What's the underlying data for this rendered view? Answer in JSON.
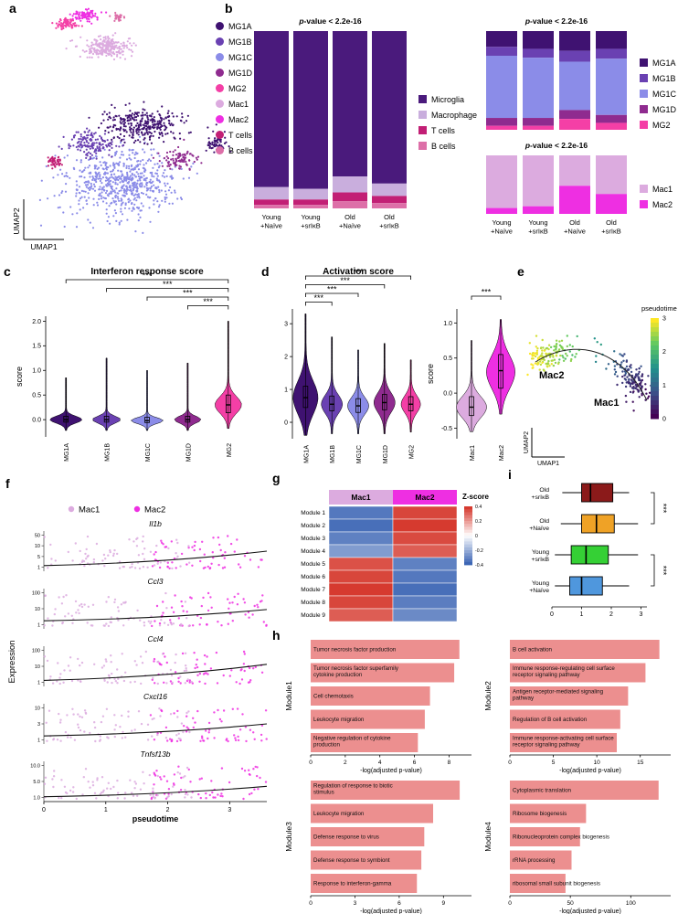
{
  "panel_labels": {
    "a": "a",
    "b": "b",
    "c": "c",
    "d": "d",
    "e": "e",
    "f": "f",
    "g": "g",
    "h": "h",
    "i": "i"
  },
  "colors": {
    "mg1a": "#3f1271",
    "mg1b": "#6a41b2",
    "mg1c": "#8b8ce8",
    "mg1d": "#8f2b8f",
    "mg2": "#f43fa6",
    "mac1": "#dcabdf",
    "mac2": "#ee2fe2",
    "tcells": "#c21f75",
    "bcells": "#dd6fa8",
    "microglia": "#4a1a7c",
    "macrophage": "#c9aedd",
    "go_bar": "#ec8f8f",
    "heat_red": "#d63a2f",
    "heat_blue": "#3d66b5",
    "box_old_srikb": "#8b1a1a",
    "box_old_naive": "#efa226",
    "box_young_srikb": "#35d035",
    "box_young_naive": "#4f97dd",
    "trend_line": "#111111"
  },
  "legends": {
    "a": [
      {
        "name": "MG1A",
        "color_key": "mg1a"
      },
      {
        "name": "MG1B",
        "color_key": "mg1b"
      },
      {
        "name": "MG1C",
        "color_key": "mg1c"
      },
      {
        "name": "MG1D",
        "color_key": "mg1d"
      },
      {
        "name": "MG2",
        "color_key": "mg2"
      },
      {
        "name": "Mac1",
        "color_key": "mac1"
      },
      {
        "name": "Mac2",
        "color_key": "mac2"
      },
      {
        "name": "T cells",
        "color_key": "tcells"
      },
      {
        "name": "B cells",
        "color_key": "bcells"
      }
    ],
    "b_celltypes": [
      {
        "name": "Microglia",
        "color_key": "microglia"
      },
      {
        "name": "Macrophage",
        "color_key": "macrophage"
      },
      {
        "name": "T cells",
        "color_key": "tcells"
      },
      {
        "name": "B cells",
        "color_key": "bcells"
      }
    ],
    "b_microglia": [
      {
        "name": "MG1A",
        "color_key": "mg1a"
      },
      {
        "name": "MG1B",
        "color_key": "mg1b"
      },
      {
        "name": "MG1C",
        "color_key": "mg1c"
      },
      {
        "name": "MG1D",
        "color_key": "mg1d"
      },
      {
        "name": "MG2",
        "color_key": "mg2"
      }
    ],
    "b_macrophage": [
      {
        "name": "Mac1",
        "color_key": "mac1"
      },
      {
        "name": "Mac2",
        "color_key": "mac2"
      }
    ]
  },
  "chart_data": {
    "umap_clusters": {
      "type": "scatter",
      "xlabel": "UMAP1",
      "ylabel": "UMAP2",
      "clusters": [
        {
          "name": "MG1C",
          "color_key": "mg1c",
          "blobs": [
            [
              125,
              196,
              68,
              38,
              650
            ]
          ]
        },
        {
          "name": "MG1A",
          "color_key": "mg1a",
          "blobs": [
            [
              150,
              133,
              50,
              20,
              320
            ],
            [
              229,
              153,
              13,
              9,
              60
            ]
          ]
        },
        {
          "name": "MG1B",
          "color_key": "mg1b",
          "blobs": [
            [
              92,
              153,
              28,
              14,
              150
            ]
          ]
        },
        {
          "name": "MG1D",
          "color_key": "mg1d",
          "blobs": [
            [
              188,
              169,
              20,
              13,
              90
            ]
          ]
        },
        {
          "name": "MG2",
          "color_key": "mg2",
          "blobs": [
            [
              66,
              22,
              13,
              7,
              70
            ]
          ]
        },
        {
          "name": "Mac1",
          "color_key": "mac1",
          "blobs": [
            [
              108,
              48,
              28,
              13,
              240
            ]
          ]
        },
        {
          "name": "Mac2",
          "color_key": "mac2",
          "blobs": [
            [
              86,
              13,
              16,
              6,
              90
            ]
          ]
        },
        {
          "name": "T cells",
          "color_key": "tcells",
          "blobs": [
            [
              52,
              173,
              9,
              7,
              50
            ]
          ]
        },
        {
          "name": "B cells",
          "color_key": "bcells",
          "blobs": [
            [
              121,
              16,
              8,
              5,
              28
            ]
          ]
        }
      ]
    },
    "composition_celltypes": {
      "type": "bar",
      "stacked": true,
      "unit": "percent",
      "title": "p-value < 2.2e-16",
      "categories": [
        "Young\n+Naïve",
        "Young\n+srIκB",
        "Old\n+Naïve",
        "Old\n+srIκB"
      ],
      "series": [
        {
          "name": "Microglia",
          "color_key": "microglia",
          "values": [
            88,
            89,
            82,
            86
          ]
        },
        {
          "name": "Macrophage",
          "color_key": "macrophage",
          "values": [
            7,
            6,
            9,
            7
          ]
        },
        {
          "name": "T cells",
          "color_key": "tcells",
          "values": [
            3,
            3,
            5,
            4
          ]
        },
        {
          "name": "B cells",
          "color_key": "bcells",
          "values": [
            2,
            2,
            4,
            3
          ]
        }
      ]
    },
    "composition_microglia": {
      "type": "bar",
      "stacked": true,
      "unit": "percent",
      "title": "p-value < 2.2e-16",
      "categories": [
        "Young\n+Naïve",
        "Young\n+srIκB",
        "Old\n+Naïve",
        "Old\n+srIκB"
      ],
      "series": [
        {
          "name": "MG1A",
          "color_key": "mg1a",
          "values": [
            16,
            18,
            20,
            18
          ]
        },
        {
          "name": "MG1B",
          "color_key": "mg1b",
          "values": [
            9,
            9,
            11,
            10
          ]
        },
        {
          "name": "MG1C",
          "color_key": "mg1c",
          "values": [
            63,
            61,
            49,
            57
          ]
        },
        {
          "name": "MG1D",
          "color_key": "mg1d",
          "values": [
            8,
            8,
            9,
            8
          ]
        },
        {
          "name": "MG2",
          "color_key": "mg2",
          "values": [
            4,
            4,
            11,
            7
          ]
        }
      ]
    },
    "composition_macrophage": {
      "type": "bar",
      "stacked": true,
      "unit": "percent",
      "title": "p-value < 2.2e-16",
      "categories": [
        "Young\n+Naïve",
        "Young\n+srIκB",
        "Old\n+Naïve",
        "Old\n+srIκB"
      ],
      "series": [
        {
          "name": "Mac1",
          "color_key": "mac1",
          "values": [
            90,
            87,
            52,
            66
          ]
        },
        {
          "name": "Mac2",
          "color_key": "mac2",
          "values": [
            10,
            13,
            48,
            34
          ]
        }
      ]
    },
    "interferon_violins": {
      "type": "violin",
      "title": "Interferon response score",
      "ylabel": "score",
      "ylim": [
        -0.35,
        2.1
      ],
      "yticks": [
        [
          0,
          "0.0"
        ],
        [
          0.5,
          "0.5"
        ],
        [
          1,
          "1.0"
        ],
        [
          1.5,
          "1.5"
        ],
        [
          2,
          "2.0"
        ]
      ],
      "categories": [
        "MG1A",
        "MG1B",
        "MG1C",
        "MG1D",
        "MG2"
      ],
      "violins": [
        {
          "color_key": "mg1a",
          "peak": 0,
          "sd": 0.07,
          "min": -0.22,
          "max": 0.85,
          "hw": 17,
          "q1": -0.05,
          "med": 0,
          "q3": 0.07
        },
        {
          "color_key": "mg1b",
          "peak": 0,
          "sd": 0.07,
          "min": -0.22,
          "max": 1.25,
          "hw": 15,
          "q1": -0.05,
          "med": 0,
          "q3": 0.07
        },
        {
          "color_key": "mg1c",
          "peak": -0.02,
          "sd": 0.06,
          "min": -0.22,
          "max": 1.0,
          "hw": 17,
          "q1": -0.06,
          "med": -0.02,
          "q3": 0.05
        },
        {
          "color_key": "mg1d",
          "peak": 0,
          "sd": 0.07,
          "min": -0.22,
          "max": 1.15,
          "hw": 14,
          "q1": -0.05,
          "med": 0,
          "q3": 0.07
        },
        {
          "color_key": "mg2",
          "peak": 0.3,
          "sd": 0.17,
          "min": -0.18,
          "max": 2.0,
          "hw": 14,
          "q1": 0.14,
          "med": 0.3,
          "q3": 0.5
        }
      ],
      "brackets": [
        {
          "from": 0,
          "to": 4,
          "label": "***"
        },
        {
          "from": 1,
          "to": 4,
          "label": "***"
        },
        {
          "from": 2,
          "to": 4,
          "label": "***"
        },
        {
          "from": 3,
          "to": 4,
          "label": "***"
        }
      ]
    },
    "activation_violins_microglia": {
      "type": "violin",
      "title": "Activation score",
      "ylim": [
        -0.5,
        3.45
      ],
      "yticks": [
        [
          0,
          "0"
        ],
        [
          1,
          "1"
        ],
        [
          2,
          "2"
        ],
        [
          3,
          "3"
        ]
      ],
      "categories": [
        "MG1A",
        "MG1B",
        "MG1C",
        "MG1D",
        "MG2"
      ],
      "violins": [
        {
          "color_key": "mg1a",
          "peak": 0.75,
          "sd": 0.5,
          "min": -0.4,
          "max": 3.3,
          "hw": 13,
          "q1": 0.45,
          "med": 0.75,
          "q3": 1.1
        },
        {
          "color_key": "mg1b",
          "peak": 0.55,
          "sd": 0.28,
          "min": -0.35,
          "max": 2.6,
          "hw": 11,
          "q1": 0.35,
          "med": 0.55,
          "q3": 0.8
        },
        {
          "color_key": "mg1c",
          "peak": 0.5,
          "sd": 0.26,
          "min": -0.35,
          "max": 2.2,
          "hw": 11,
          "q1": 0.3,
          "med": 0.5,
          "q3": 0.72
        },
        {
          "color_key": "mg1d",
          "peak": 0.6,
          "sd": 0.3,
          "min": -0.35,
          "max": 2.4,
          "hw": 11,
          "q1": 0.38,
          "med": 0.6,
          "q3": 0.85
        },
        {
          "color_key": "mg2",
          "peak": 0.55,
          "sd": 0.26,
          "min": -0.3,
          "max": 1.9,
          "hw": 10,
          "q1": 0.35,
          "med": 0.55,
          "q3": 0.78
        }
      ],
      "brackets": [
        {
          "from": 0,
          "to": 4,
          "label": "***"
        },
        {
          "from": 0,
          "to": 3,
          "label": "***"
        },
        {
          "from": 0,
          "to": 2,
          "label": "***"
        },
        {
          "from": 0,
          "to": 1,
          "label": "***"
        }
      ]
    },
    "activation_violins_macrophage": {
      "type": "violin",
      "ylabel": "score",
      "ylim": [
        -0.65,
        1.2
      ],
      "yticks": [
        [
          -0.5,
          "-0.5"
        ],
        [
          0,
          "0.0"
        ],
        [
          0.5,
          "0.5"
        ],
        [
          1,
          "1.0"
        ]
      ],
      "categories": [
        "Mac1",
        "Mac2"
      ],
      "violins": [
        {
          "color_key": "mac1",
          "peak": -0.2,
          "sd": 0.15,
          "min": -0.55,
          "max": 0.75,
          "hw": 16,
          "q1": -0.32,
          "med": -0.2,
          "q3": -0.05
        },
        {
          "color_key": "mac2",
          "peak": 0.3,
          "sd": 0.24,
          "min": -0.3,
          "max": 1.05,
          "hw": 15,
          "q1": 0.07,
          "med": 0.32,
          "q3": 0.55
        }
      ],
      "brackets": [
        {
          "from": 0,
          "to": 1,
          "label": "***"
        }
      ]
    },
    "pseudotime_umap": {
      "type": "scatter",
      "xlabel": "UMAP1",
      "ylabel": "UMAP2",
      "colorbar_title": "pseudotime",
      "colorbar_ticks": [
        "3",
        "2",
        "1",
        "0"
      ],
      "viridis": [
        "#440154",
        "#3b528b",
        "#21918c",
        "#5ec962",
        "#fde725"
      ],
      "curve": [
        [
          20,
          108
        ],
        [
          65,
          80
        ],
        [
          115,
          95
        ],
        [
          142,
          150
        ]
      ],
      "n_points": 300,
      "cluster_labels": [
        {
          "text": "Mac2",
          "x": 24,
          "y": 126
        },
        {
          "text": "Mac1",
          "x": 84,
          "y": 156
        }
      ]
    },
    "expression_pseudotime": {
      "type": "scatter",
      "ylabel": "Expression",
      "xlabel": "pseudotime",
      "xlim": [
        0,
        3.6
      ],
      "xticks": [
        [
          0,
          "0"
        ],
        [
          1,
          "1"
        ],
        [
          2,
          "2"
        ],
        [
          3,
          "3"
        ]
      ],
      "legend": [
        {
          "name": "Mac1",
          "color_key": "mac1"
        },
        {
          "name": "Mac2",
          "color_key": "mac2"
        }
      ],
      "genes": [
        {
          "name": "Il1b",
          "yticks": [
            "50",
            "10",
            "5",
            "1"
          ],
          "trend": [
            0.86,
            0.5
          ]
        },
        {
          "name": "Ccl3",
          "yticks": [
            "100",
            "10",
            "1"
          ],
          "trend": [
            0.8,
            0.52
          ]
        },
        {
          "name": "Ccl4",
          "yticks": [
            "100",
            "10",
            "1"
          ],
          "trend": [
            0.85,
            0.45
          ]
        },
        {
          "name": "Cxcl16",
          "yticks": [
            "10",
            "3",
            "1"
          ],
          "trend": [
            0.8,
            0.5
          ]
        },
        {
          "name": "Tnfsf13b",
          "yticks": [
            "10.0",
            "5.0",
            "1.0"
          ],
          "trend": [
            0.88,
            0.62
          ]
        }
      ]
    },
    "module_zscore_heatmap": {
      "type": "heatmap",
      "columns": [
        "Mac1",
        "Mac2"
      ],
      "column_color_keys": [
        "mac1",
        "mac2"
      ],
      "rows": [
        "Module 1",
        "Module 2",
        "Module 3",
        "Module 4",
        "Module 5",
        "Module 6",
        "Module 7",
        "Module 8",
        "Module 9"
      ],
      "values": [
        [
          -0.75,
          0.8
        ],
        [
          -0.8,
          0.85
        ],
        [
          -0.7,
          0.78
        ],
        [
          -0.55,
          0.7
        ],
        [
          0.75,
          -0.7
        ],
        [
          0.8,
          -0.75
        ],
        [
          0.85,
          -0.8
        ],
        [
          0.8,
          -0.72
        ],
        [
          0.7,
          -0.65
        ]
      ],
      "scale_max": 0.85,
      "colorbar_title": "Z-score",
      "colorbar_ticks": [
        "0.4",
        "0.2",
        "0",
        "-0.2",
        "-0.4"
      ]
    },
    "go_enrichment": [
      {
        "module": "Module1",
        "xlabel": "-log(adjusted p-value)",
        "xticks": [
          0,
          2,
          4,
          6,
          8
        ],
        "xmax": 9.3,
        "terms": [
          "Tumor necrosis factor production",
          "Tumor necrosis factor superfamily cytokine production",
          "Cell chemotaxis",
          "Leukocyte migration",
          "Negative regulation of cytokine production"
        ],
        "values": [
          8.6,
          8.3,
          6.9,
          6.6,
          6.2
        ]
      },
      {
        "module": "Module2",
        "xlabel": "-log(adjusted p-value)",
        "xticks": [
          0,
          5,
          10,
          15
        ],
        "xmax": 18.5,
        "terms": [
          "B cell activation",
          "Immune response-regulating cell surface receptor signaling pathway",
          "Antigen receptor-mediated signaling pathway",
          "Regulation of B cell activation",
          "Immune response-activating cell surface receptor signaling pathway"
        ],
        "values": [
          17.2,
          15.6,
          13.6,
          12.7,
          12.3
        ]
      },
      {
        "module": "Module3",
        "xlabel": "-log(adjusted p-value)",
        "xticks": [
          0,
          3,
          6,
          9
        ],
        "xmax": 10.9,
        "terms": [
          "Regulation of response to biotic stimulus",
          "Leukocyte migration",
          "Defense response to virus",
          "Defense response to symbiont",
          "Response to interferon-gamma"
        ],
        "values": [
          10.1,
          8.3,
          7.7,
          7.5,
          7.2
        ]
      },
      {
        "module": "Module4",
        "xlabel": "-log(adjusted p-value)",
        "xticks": [
          0,
          50,
          100
        ],
        "xmax": 133,
        "terms": [
          "Cytoplasmic translation",
          "Ribosome biogenesis",
          "Ribonucleoprotein complex biogenesis",
          "rRNA processing",
          "ribosomal small subunit biogenesis"
        ],
        "values": [
          123,
          63,
          58,
          51,
          46
        ]
      }
    ],
    "group_boxplots": {
      "type": "boxplot",
      "xlim": [
        0,
        3.2
      ],
      "xticks": [
        [
          0,
          "0"
        ],
        [
          1,
          "1"
        ],
        [
          2,
          "2"
        ],
        [
          3,
          "3"
        ]
      ],
      "rows": [
        {
          "label": "Old\n+srIκB",
          "color_key": "box_old_srikb",
          "min": 0.35,
          "q1": 1.0,
          "med": 1.3,
          "q3": 2.05,
          "max": 2.6
        },
        {
          "label": "Old\n+Naïve",
          "color_key": "box_old_naive",
          "min": 0.3,
          "q1": 1.0,
          "med": 1.5,
          "q3": 2.1,
          "max": 2.9
        },
        {
          "label": "Young\n+srIκB",
          "color_key": "box_young_srikb",
          "min": 0.1,
          "q1": 0.65,
          "med": 1.15,
          "q3": 1.9,
          "max": 2.9
        },
        {
          "label": "Young\n+Naïve",
          "color_key": "box_young_naive",
          "min": 0.1,
          "q1": 0.6,
          "med": 1.0,
          "q3": 1.7,
          "max": 2.6
        }
      ],
      "brackets": [
        {
          "from": 0,
          "to": 1,
          "label": "***"
        },
        {
          "from": 2,
          "to": 3,
          "label": "***"
        }
      ]
    }
  }
}
